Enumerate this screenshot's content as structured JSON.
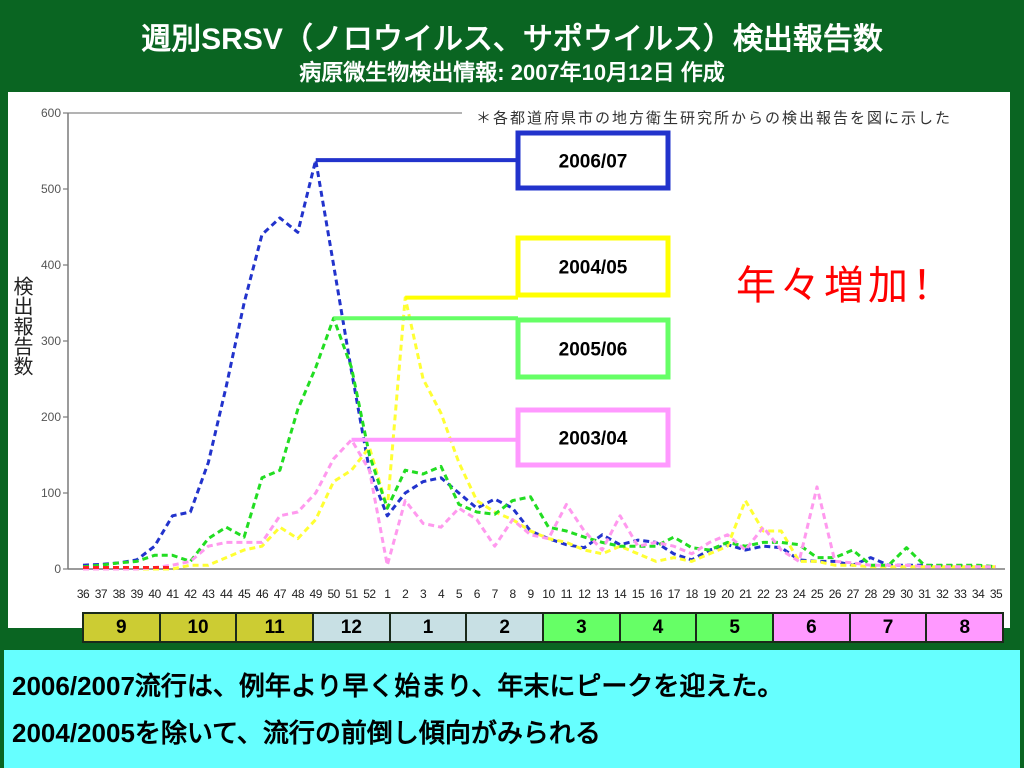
{
  "header": {
    "title": "週別SRSV（ノロウイルス、サポウイルス）検出報告数",
    "subtitle": "病原微生物検出情報: 2007年10月12日 作成"
  },
  "chart_data": {
    "type": "line",
    "line_style": "dashed",
    "xlabel": "",
    "ylabel": "検出報告数",
    "ylim": [
      0,
      600
    ],
    "yticks": [
      0,
      100,
      200,
      300,
      400,
      500,
      600
    ],
    "grid": false,
    "categories": [
      "36",
      "37",
      "38",
      "39",
      "40",
      "41",
      "42",
      "43",
      "44",
      "45",
      "46",
      "47",
      "48",
      "49",
      "50",
      "51",
      "52",
      "1",
      "2",
      "3",
      "4",
      "5",
      "6",
      "7",
      "8",
      "9",
      "10",
      "11",
      "12",
      "13",
      "14",
      "15",
      "16",
      "17",
      "18",
      "19",
      "20",
      "21",
      "22",
      "23",
      "24",
      "25",
      "26",
      "27",
      "28",
      "29",
      "30",
      "31",
      "32",
      "33",
      "34",
      "35"
    ],
    "series": [
      {
        "name": "2006/07",
        "color": "#2233cc",
        "box_color": "#2233cc",
        "values": [
          5,
          6,
          8,
          12,
          30,
          70,
          75,
          140,
          240,
          350,
          440,
          462,
          443,
          538,
          400,
          260,
          130,
          70,
          100,
          115,
          120,
          100,
          80,
          92,
          80,
          50,
          40,
          32,
          28,
          45,
          32,
          38,
          35,
          20,
          12,
          25,
          32,
          25,
          30,
          28,
          12,
          10,
          10,
          5,
          15,
          5,
          5,
          5,
          4,
          4,
          3,
          3
        ]
      },
      {
        "name": "2004/05",
        "color": "#ffff33",
        "box_color": "#ffff00",
        "values": [
          0,
          0,
          0,
          0,
          0,
          0,
          5,
          5,
          15,
          25,
          30,
          55,
          40,
          65,
          115,
          130,
          160,
          80,
          357,
          250,
          205,
          140,
          90,
          75,
          65,
          50,
          40,
          35,
          25,
          20,
          30,
          20,
          10,
          15,
          10,
          20,
          30,
          90,
          50,
          50,
          10,
          10,
          5,
          5,
          3,
          3,
          3,
          3,
          3,
          3,
          3,
          3
        ]
      },
      {
        "name": "2005/06",
        "color": "#22dd22",
        "box_color": "#66ff66",
        "values": [
          3,
          5,
          8,
          10,
          18,
          18,
          10,
          40,
          55,
          42,
          120,
          130,
          210,
          265,
          330,
          265,
          150,
          80,
          130,
          125,
          135,
          85,
          75,
          72,
          90,
          95,
          55,
          50,
          42,
          35,
          30,
          30,
          30,
          42,
          28,
          25,
          35,
          30,
          35,
          35,
          32,
          15,
          15,
          25,
          5,
          5,
          28,
          5,
          5,
          5,
          5,
          3
        ]
      },
      {
        "name": "2003/04",
        "color": "#ff99ee",
        "box_color": "#ff99ff",
        "values": [
          0,
          0,
          0,
          0,
          2,
          5,
          10,
          30,
          35,
          35,
          35,
          70,
          75,
          100,
          145,
          170,
          130,
          5,
          90,
          60,
          55,
          80,
          65,
          30,
          65,
          45,
          40,
          85,
          50,
          25,
          70,
          30,
          35,
          30,
          20,
          35,
          45,
          25,
          55,
          25,
          10,
          108,
          10,
          8,
          5,
          5,
          5,
          3,
          3,
          3,
          3,
          3
        ]
      },
      {
        "color": "#ff2222",
        "values": [
          2,
          2,
          2,
          2,
          2,
          2,
          null,
          null,
          null,
          null,
          null,
          null,
          null,
          null,
          null,
          null,
          null,
          null,
          null,
          null,
          null,
          null,
          null,
          null,
          null,
          null,
          null,
          null,
          null,
          null,
          null,
          null,
          null,
          null,
          null,
          null,
          null,
          null,
          null,
          null,
          null,
          null,
          null,
          null,
          null,
          null,
          null,
          null,
          null,
          null,
          null,
          null
        ]
      }
    ],
    "note": "＊各都道府県市の地方衛生研究所からの検出報告を図に示した",
    "annotation": "年々増加！"
  },
  "month_bar": [
    {
      "label": "9",
      "color": "#cccc33"
    },
    {
      "label": "10",
      "color": "#cccc33"
    },
    {
      "label": "11",
      "color": "#cccc33"
    },
    {
      "label": "12",
      "color": "#c8e0e4"
    },
    {
      "label": "1",
      "color": "#c8e0e4"
    },
    {
      "label": "2",
      "color": "#c8e0e4"
    },
    {
      "label": "3",
      "color": "#66ff66"
    },
    {
      "label": "4",
      "color": "#66ff66"
    },
    {
      "label": "5",
      "color": "#66ff66"
    },
    {
      "label": "6",
      "color": "#ff99ff"
    },
    {
      "label": "7",
      "color": "#ff99ff"
    },
    {
      "label": "8",
      "color": "#ff99ff"
    }
  ],
  "summary": {
    "lines": [
      "2006/2007流行は、例年より早く始まり、年末にピークを迎えた。",
      "2004/2005を除いて、流行の前倒し傾向がみられる"
    ]
  },
  "theme": {
    "frame": "#0a6522",
    "summary_bg": "#66ffff",
    "annotation_color": "#ff0000"
  }
}
